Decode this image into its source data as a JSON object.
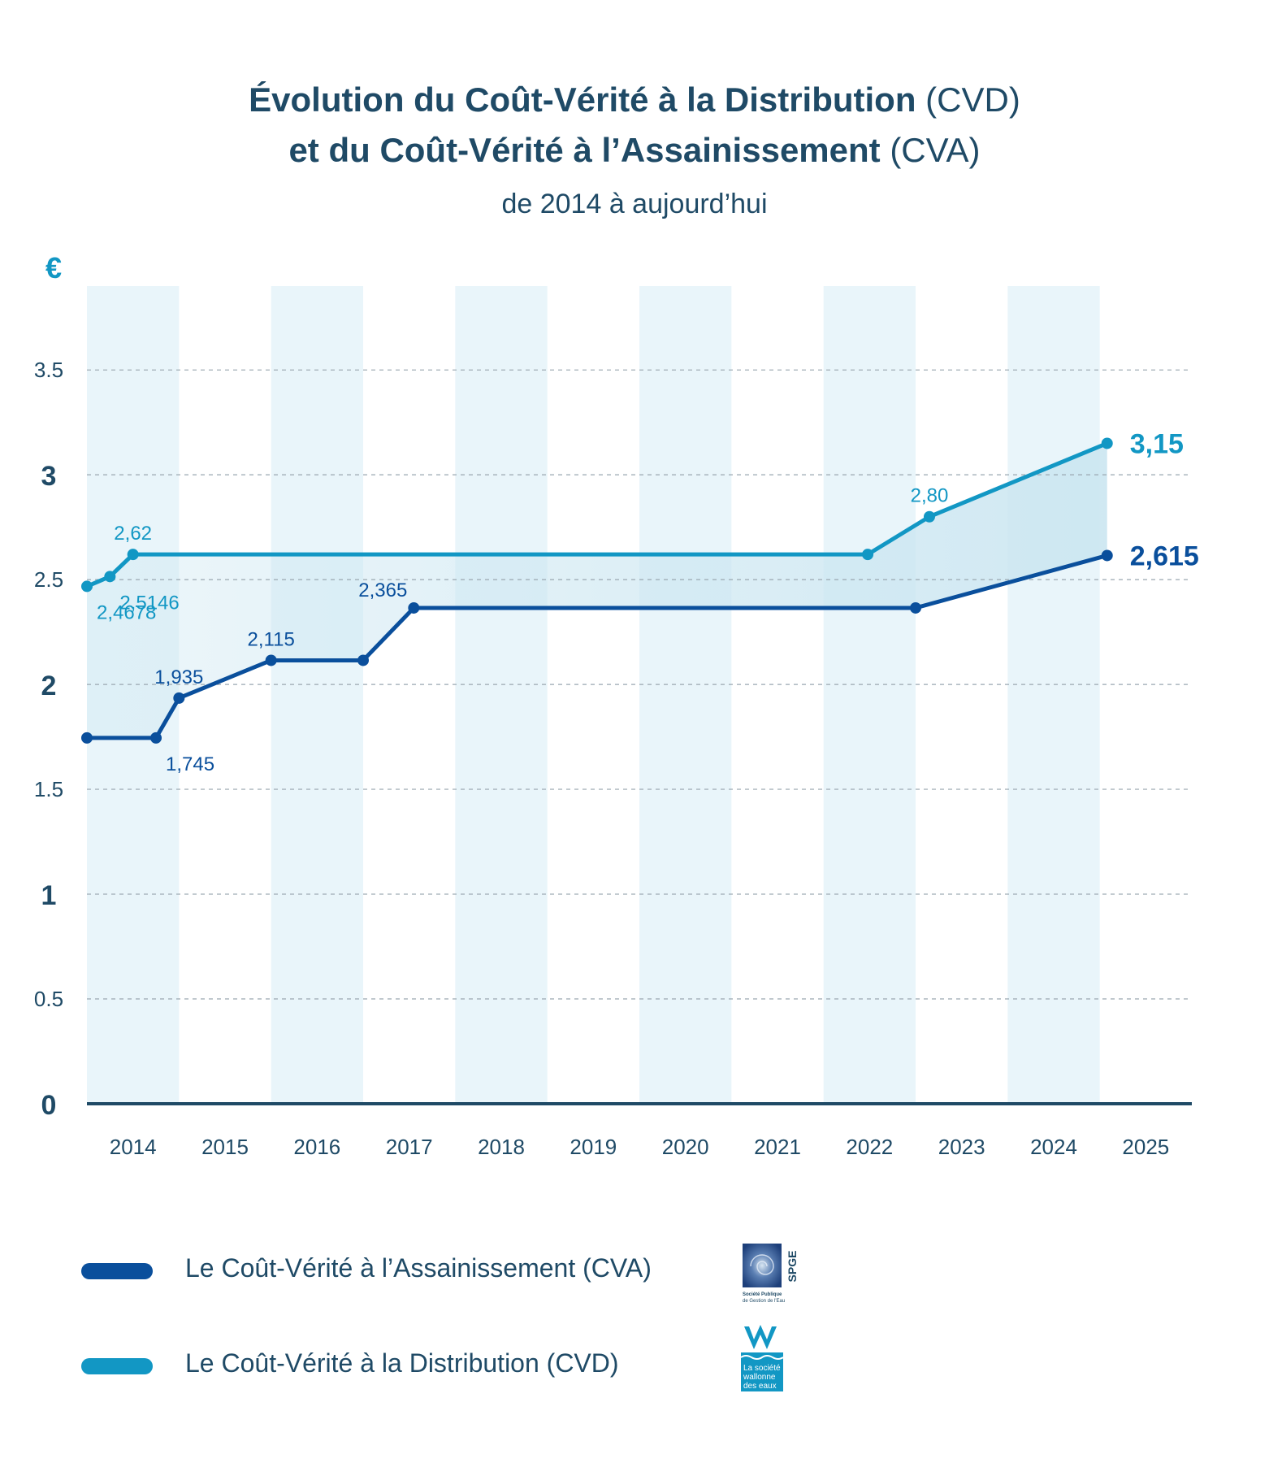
{
  "title": {
    "line1_bold": "Évolution du Coût-Vérité à la Distribution",
    "line1_normal": " (CVD)",
    "line2_bold": "et du Coût-Vérité à l’Assainissement",
    "line2_normal": " (CVA)",
    "subtitle": "de 2014 à aujourd’hui"
  },
  "legend": {
    "cva": "Le Coût-Vérité à l’Assainissement (CVA)",
    "cvd": "Le Coût-Vérité à la Distribution (CVD)"
  },
  "logos": {
    "spge_text": "SPGE",
    "spge_caption_1": "Société Publique",
    "spge_caption_2": "de Gestion de l'Eau",
    "swde_caption_1": "La société",
    "swde_caption_2": "wallonne",
    "swde_caption_3": "des eaux"
  },
  "colors": {
    "cva": "#0a4f9c",
    "cvd": "#1297c4",
    "band": "#e9f5fa",
    "fill": "#cbe6f1",
    "text": "#1f4a66"
  },
  "chart_data": {
    "type": "line",
    "ylabel": "€",
    "ylim": [
      0,
      3.9
    ],
    "yticks": [
      "0",
      "0.5",
      "1",
      "1.5",
      "2",
      "2.5",
      "3",
      "3.5"
    ],
    "ytick_values": [
      0,
      0.5,
      1,
      1.5,
      2,
      2.5,
      3,
      3.5
    ],
    "bold_ticks": [
      "0",
      "1",
      "2",
      "3"
    ],
    "xticks": [
      "2014",
      "2015",
      "2016",
      "2017",
      "2018",
      "2019",
      "2020",
      "2021",
      "2022",
      "2023",
      "2024",
      "2025"
    ],
    "xlim": [
      2013.5,
      2025.5
    ],
    "grid": "horizontal-dashed",
    "shaded_years": [
      2014,
      2016,
      2018,
      2020,
      2022,
      2024
    ],
    "series": [
      {
        "name": "Le Coût-Vérité à la Distribution (CVD)",
        "key": "cvd",
        "points": [
          {
            "x": 2013.5,
            "y": 2.4678
          },
          {
            "x": 2013.75,
            "y": 2.5146
          },
          {
            "x": 2014.0,
            "y": 2.62
          },
          {
            "x": 2021.98,
            "y": 2.62
          },
          {
            "x": 2022.65,
            "y": 2.8
          },
          {
            "x": 2024.58,
            "y": 3.15
          }
        ],
        "labels": [
          {
            "text": "2,4678",
            "point": 0,
            "pos": "below"
          },
          {
            "text": "2,5146",
            "point": 1,
            "pos": "below"
          },
          {
            "text": "2,62",
            "point": 2,
            "pos": "above"
          },
          {
            "text": "2,80",
            "point": 4,
            "pos": "above"
          },
          {
            "text": "3,15",
            "point": 5,
            "pos": "right"
          }
        ]
      },
      {
        "name": "Le Coût-Vérité à l’Assainissement (CVA)",
        "key": "cva",
        "points": [
          {
            "x": 2013.5,
            "y": 1.745
          },
          {
            "x": 2014.25,
            "y": 1.745
          },
          {
            "x": 2014.5,
            "y": 1.935
          },
          {
            "x": 2015.5,
            "y": 2.115
          },
          {
            "x": 2016.5,
            "y": 2.115
          },
          {
            "x": 2017.05,
            "y": 2.365
          },
          {
            "x": 2022.5,
            "y": 2.365
          },
          {
            "x": 2024.58,
            "y": 2.615
          }
        ],
        "labels": [
          {
            "text": "1,745",
            "point": 1,
            "pos": "below"
          },
          {
            "text": "1,935",
            "point": 2,
            "pos": "above"
          },
          {
            "text": "2,115",
            "point": 3,
            "pos": "above"
          },
          {
            "text": "2,365",
            "point": 5,
            "pos": "above-left"
          },
          {
            "text": "2,615",
            "point": 7,
            "pos": "right"
          }
        ]
      }
    ]
  }
}
